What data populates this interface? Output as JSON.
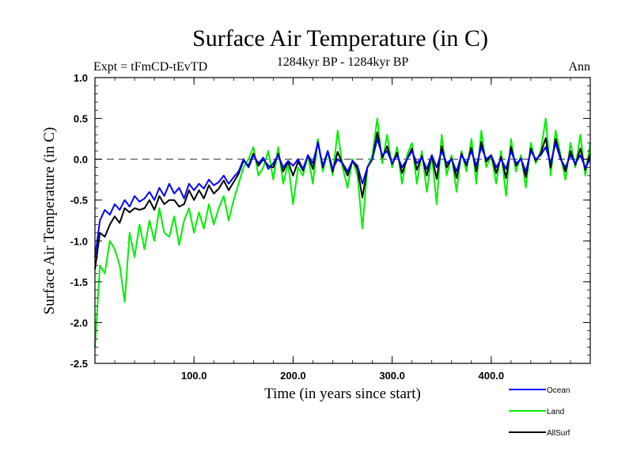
{
  "chart_data": {
    "type": "line",
    "title": "Surface Air Temperature (in C)",
    "subtitle": "1284kyr BP - 1284kyr BP",
    "left_label": "Expt = tFmCD-tEvTD",
    "right_label": "Ann",
    "xlabel": "Time (in years since start)",
    "ylabel": "Surface Air Temperature (in C)",
    "xlim": [
      0,
      500
    ],
    "ylim": [
      -2.5,
      1.0
    ],
    "x_ticks": [
      100,
      200,
      300,
      400
    ],
    "x_tick_labels": [
      "100.0",
      "200.0",
      "300.0",
      "400.0"
    ],
    "y_ticks": [
      -2.5,
      -2.0,
      -1.5,
      -1.0,
      -0.5,
      0.0,
      0.5,
      1.0
    ],
    "y_tick_labels": [
      "-2.5",
      "-2.0",
      "-1.5",
      "-1.0",
      "-0.5",
      "0.0",
      "0.5",
      "1.0"
    ],
    "reference_line": 0.0,
    "legend_position": "bottom-right",
    "series": [
      {
        "name": "Ocean",
        "color": "#0000ff",
        "x": [
          0,
          5,
          10,
          15,
          20,
          25,
          30,
          35,
          40,
          45,
          50,
          55,
          60,
          65,
          70,
          75,
          80,
          85,
          90,
          95,
          100,
          105,
          110,
          115,
          120,
          125,
          130,
          135,
          140,
          145,
          150,
          155,
          160,
          165,
          170,
          175,
          180,
          185,
          190,
          195,
          200,
          205,
          210,
          215,
          220,
          225,
          230,
          235,
          240,
          245,
          250,
          255,
          260,
          265,
          270,
          275,
          280,
          285,
          290,
          295,
          300,
          305,
          310,
          315,
          320,
          325,
          330,
          335,
          340,
          345,
          350,
          355,
          360,
          365,
          370,
          375,
          380,
          385,
          390,
          395,
          400,
          405,
          410,
          415,
          420,
          425,
          430,
          435,
          440,
          445,
          450,
          455,
          460,
          465,
          470,
          475,
          480,
          485,
          490,
          495,
          500
        ],
        "values": [
          -1.2,
          -0.75,
          -0.62,
          -0.68,
          -0.55,
          -0.62,
          -0.5,
          -0.58,
          -0.45,
          -0.52,
          -0.48,
          -0.4,
          -0.5,
          -0.35,
          -0.45,
          -0.3,
          -0.42,
          -0.35,
          -0.48,
          -0.3,
          -0.38,
          -0.3,
          -0.36,
          -0.25,
          -0.32,
          -0.28,
          -0.2,
          -0.3,
          -0.22,
          -0.15,
          0.0,
          -0.1,
          0.05,
          -0.05,
          0.02,
          -0.12,
          -0.05,
          0.05,
          -0.1,
          -0.02,
          -0.08,
          0.0,
          -0.12,
          0.05,
          -0.05,
          0.2,
          -0.08,
          0.1,
          -0.12,
          0.0,
          -0.05,
          -0.15,
          -0.02,
          -0.08,
          -0.3,
          -0.1,
          0.0,
          0.25,
          0.05,
          0.1,
          -0.05,
          0.05,
          -0.1,
          0.0,
          0.1,
          -0.05,
          0.02,
          -0.12,
          0.05,
          -0.1,
          0.1,
          -0.05,
          0.0,
          -0.15,
          0.05,
          -0.05,
          0.1,
          -0.08,
          0.15,
          0.0,
          0.05,
          -0.1,
          0.0,
          -0.12,
          0.1,
          -0.05,
          0.0,
          -0.15,
          0.1,
          0.0,
          0.05,
          0.15,
          -0.05,
          0.2,
          0.0,
          -0.1,
          0.05,
          -0.05,
          0.05,
          -0.1,
          0.0
        ]
      },
      {
        "name": "Land",
        "color": "#00ee00",
        "x": [
          0,
          5,
          10,
          15,
          20,
          25,
          30,
          35,
          40,
          45,
          50,
          55,
          60,
          65,
          70,
          75,
          80,
          85,
          90,
          95,
          100,
          105,
          110,
          115,
          120,
          125,
          130,
          135,
          140,
          145,
          150,
          155,
          160,
          165,
          170,
          175,
          180,
          185,
          190,
          195,
          200,
          205,
          210,
          215,
          220,
          225,
          230,
          235,
          240,
          245,
          250,
          255,
          260,
          265,
          270,
          275,
          280,
          285,
          290,
          295,
          300,
          305,
          310,
          315,
          320,
          325,
          330,
          335,
          340,
          345,
          350,
          355,
          360,
          365,
          370,
          375,
          380,
          385,
          390,
          395,
          400,
          405,
          410,
          415,
          420,
          425,
          430,
          435,
          440,
          445,
          450,
          455,
          460,
          465,
          470,
          475,
          480,
          485,
          490,
          495,
          500
        ],
        "values": [
          -2.3,
          -1.3,
          -1.4,
          -1.0,
          -1.1,
          -1.3,
          -1.75,
          -0.9,
          -1.2,
          -0.8,
          -1.1,
          -0.75,
          -1.0,
          -0.6,
          -0.9,
          -0.95,
          -0.7,
          -1.05,
          -0.75,
          -0.6,
          -0.9,
          -0.65,
          -0.85,
          -0.55,
          -0.8,
          -0.6,
          -0.45,
          -0.75,
          -0.5,
          -0.3,
          -0.1,
          0.0,
          0.15,
          -0.2,
          -0.1,
          0.1,
          -0.25,
          0.15,
          -0.3,
          -0.05,
          -0.55,
          -0.1,
          -0.2,
          0.05,
          -0.3,
          0.25,
          -0.15,
          0.1,
          -0.2,
          0.35,
          -0.1,
          -0.35,
          0.0,
          -0.2,
          -0.85,
          -0.1,
          0.05,
          0.5,
          -0.05,
          0.3,
          -0.1,
          0.15,
          -0.3,
          0.05,
          0.2,
          -0.3,
          0.1,
          -0.4,
          0.05,
          -0.55,
          0.3,
          -0.2,
          0.05,
          -0.4,
          0.1,
          -0.15,
          0.25,
          -0.3,
          0.35,
          -0.1,
          0.05,
          -0.3,
          0.1,
          -0.45,
          0.25,
          -0.15,
          0.05,
          -0.35,
          0.2,
          -0.05,
          0.1,
          0.5,
          -0.2,
          0.35,
          0.05,
          -0.25,
          0.2,
          -0.1,
          0.3,
          -0.2,
          0.2
        ]
      },
      {
        "name": "AllSurf",
        "color": "#000000",
        "x": [
          0,
          5,
          10,
          15,
          20,
          25,
          30,
          35,
          40,
          45,
          50,
          55,
          60,
          65,
          70,
          75,
          80,
          85,
          90,
          95,
          100,
          105,
          110,
          115,
          120,
          125,
          130,
          135,
          140,
          145,
          150,
          155,
          160,
          165,
          170,
          175,
          180,
          185,
          190,
          195,
          200,
          205,
          210,
          215,
          220,
          225,
          230,
          235,
          240,
          245,
          250,
          255,
          260,
          265,
          270,
          275,
          280,
          285,
          290,
          295,
          300,
          305,
          310,
          315,
          320,
          325,
          330,
          335,
          340,
          345,
          350,
          355,
          360,
          365,
          370,
          375,
          380,
          385,
          390,
          395,
          400,
          405,
          410,
          415,
          420,
          425,
          430,
          435,
          440,
          445,
          450,
          455,
          460,
          465,
          470,
          475,
          480,
          485,
          490,
          495,
          500
        ],
        "values": [
          -1.35,
          -0.9,
          -0.95,
          -0.8,
          -0.7,
          -0.78,
          -0.6,
          -0.65,
          -0.6,
          -0.62,
          -0.6,
          -0.5,
          -0.62,
          -0.45,
          -0.55,
          -0.5,
          -0.5,
          -0.58,
          -0.55,
          -0.38,
          -0.5,
          -0.38,
          -0.48,
          -0.32,
          -0.42,
          -0.36,
          -0.26,
          -0.38,
          -0.28,
          -0.18,
          -0.02,
          -0.08,
          0.07,
          -0.08,
          0.0,
          -0.08,
          -0.1,
          0.07,
          -0.15,
          -0.03,
          -0.2,
          -0.03,
          -0.14,
          0.05,
          -0.12,
          0.21,
          -0.1,
          0.1,
          -0.15,
          0.09,
          -0.06,
          -0.2,
          -0.02,
          -0.12,
          -0.47,
          -0.1,
          0.0,
          0.33,
          0.02,
          0.16,
          -0.06,
          0.08,
          -0.17,
          0.0,
          0.13,
          -0.13,
          0.04,
          -0.2,
          0.05,
          -0.24,
          0.16,
          -0.1,
          0.01,
          -0.23,
          0.07,
          -0.08,
          0.14,
          -0.15,
          0.21,
          -0.03,
          0.05,
          -0.17,
          0.03,
          -0.23,
          0.15,
          -0.08,
          0.01,
          -0.22,
          0.13,
          -0.02,
          0.07,
          0.26,
          -0.1,
          0.25,
          0.02,
          -0.15,
          0.1,
          -0.07,
          0.13,
          -0.13,
          0.07
        ]
      }
    ]
  }
}
